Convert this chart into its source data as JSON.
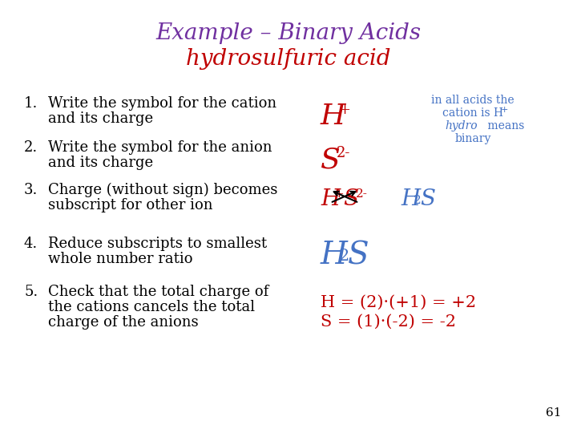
{
  "bg_color": "#ffffff",
  "title_line1": "Example – Binary Acids",
  "title_line2": "hydrosulfuric acid",
  "title_color": "#7030a0",
  "subtitle_color": "#c00000",
  "left_items": [
    [
      "1.",
      "Write the symbol for the cation\nand its charge"
    ],
    [
      "2.",
      "Write the symbol for the anion\nand its charge"
    ],
    [
      "3.",
      "Charge (without sign) becomes\nsubscript for other ion"
    ],
    [
      "4.",
      "Reduce subscripts to smallest\nwhole number ratio"
    ],
    [
      "5.",
      "Check that the total charge of\nthe cations cancels the total\ncharge of the anions"
    ]
  ],
  "text_color": "#000000",
  "red_color": "#c00000",
  "blue_color": "#4472c4",
  "page_number": "61",
  "font_size_title": 20,
  "font_size_body": 13,
  "note_fontsize": 10
}
